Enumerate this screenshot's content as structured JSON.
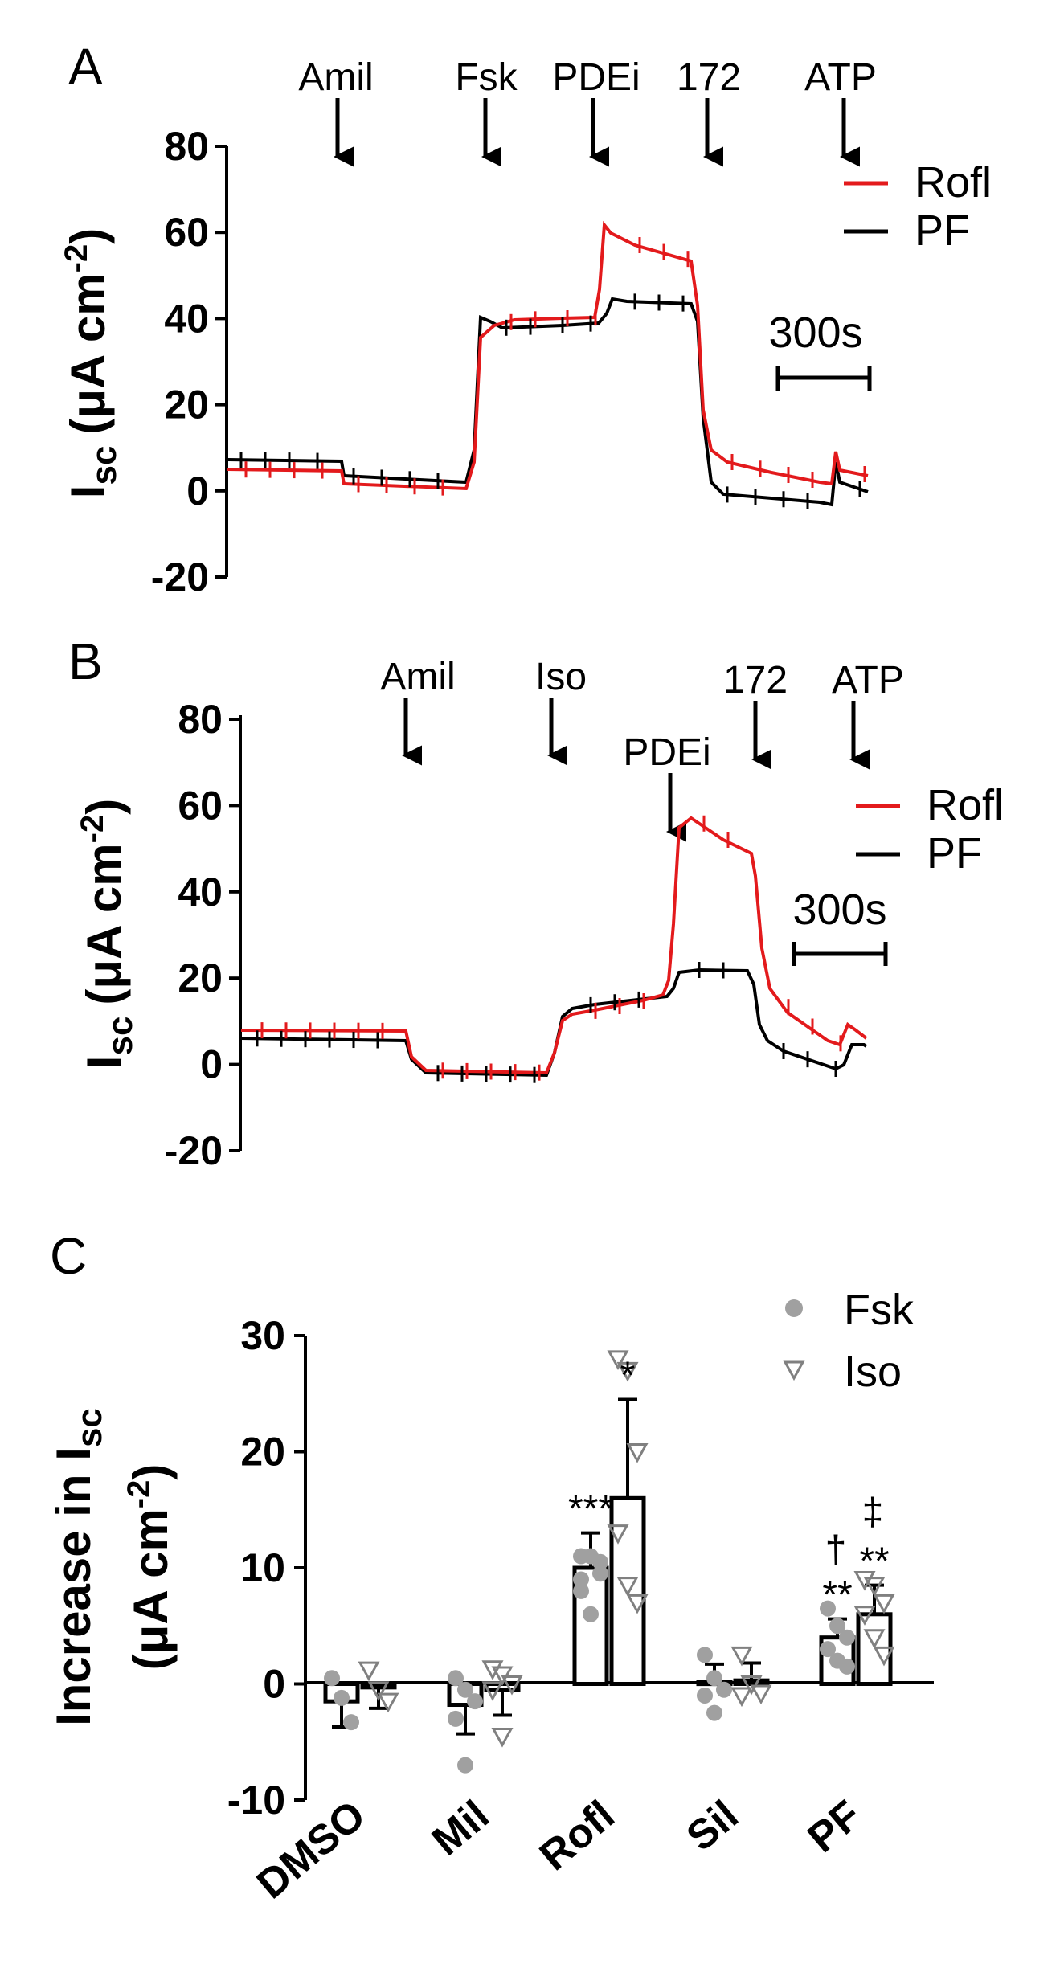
{
  "chart_data": [
    {
      "panel": "A",
      "type": "line",
      "ylabel_main": "I",
      "ylabel_sub": "sc",
      "ylabel_units": "(μA cm",
      "ylabel_exp": "-2",
      "ylabel_close": ")",
      "yticks": [
        "80",
        "60",
        "40",
        "20",
        "0",
        "-20"
      ],
      "ylim": [
        -20,
        80
      ],
      "additions": [
        "Amil",
        "Fsk",
        "PDEi",
        "172",
        "ATP"
      ],
      "scale_bar": "300s",
      "legend_position": "top-right",
      "series": [
        {
          "name": "Rofl",
          "color": "#e31a1c"
        },
        {
          "name": "PF",
          "color": "#000000"
        }
      ]
    },
    {
      "panel": "B",
      "type": "line",
      "ylabel_main": "I",
      "ylabel_sub": "sc",
      "ylabel_units": "(μA cm",
      "ylabel_exp": "-2",
      "ylabel_close": ")",
      "yticks": [
        "80",
        "60",
        "40",
        "20",
        "0",
        "-20"
      ],
      "ylim": [
        -20,
        80
      ],
      "additions": [
        "Amil",
        "Iso",
        "PDEi",
        "172",
        "ATP"
      ],
      "scale_bar": "300s",
      "legend_position": "top-right",
      "series": [
        {
          "name": "Rofl",
          "color": "#e31a1c"
        },
        {
          "name": "PF",
          "color": "#000000"
        }
      ]
    },
    {
      "panel": "C",
      "type": "bar",
      "ylabel_main": "Increase in I",
      "ylabel_sub": "sc",
      "ylabel_units": "(μA cm",
      "ylabel_exp": "-2",
      "ylabel_close": ")",
      "yticks": [
        "30",
        "20",
        "10",
        "0",
        "-10"
      ],
      "ylim": [
        -10,
        30
      ],
      "categories": [
        "DMSO",
        "Mil",
        "Rofl",
        "Sil",
        "PF"
      ],
      "legend_position": "top-right",
      "series": [
        {
          "name": "Fsk",
          "marker": "circle",
          "color": "#a0a0a0",
          "values": [
            -1.5,
            -1.8,
            10,
            0.2,
            4
          ],
          "errors": [
            2.2,
            2.5,
            3,
            1.5,
            1.6
          ],
          "points": [
            [
              0.5,
              -1.2,
              -3.3
            ],
            [
              0.5,
              -0.5,
              -1.5,
              -3,
              -7
            ],
            [
              9,
              11,
              10.5,
              8,
              6,
              9.5,
              11
            ],
            [
              2.5,
              0.5,
              -0.5,
              -1,
              -2.5
            ],
            [
              6.5,
              5,
              4,
              3,
              2,
              1.5
            ]
          ],
          "significance": [
            "",
            "",
            "***",
            "",
            "**"
          ]
        },
        {
          "name": "Iso",
          "marker": "triangle-down",
          "color": "#808080",
          "values": [
            -0.3,
            -0.5,
            16,
            0.3,
            6
          ],
          "errors": [
            1.8,
            2.2,
            8.5,
            1.5,
            2.5
          ],
          "points": [
            [
              1.2,
              -0.5,
              -1.5
            ],
            [
              1.3,
              0.8,
              0,
              -0.5,
              -4.5
            ],
            [
              28,
              27,
              20,
              13,
              8.5,
              7
            ],
            [
              2.5,
              0,
              -0.8,
              -1
            ],
            [
              9,
              8.5,
              7,
              6,
              4,
              2.5
            ]
          ],
          "significance": [
            "",
            "",
            "*",
            "",
            "**"
          ]
        }
      ],
      "extra_marks": {
        "Fsk_PF": "†",
        "Iso_PF": "‡"
      }
    }
  ]
}
